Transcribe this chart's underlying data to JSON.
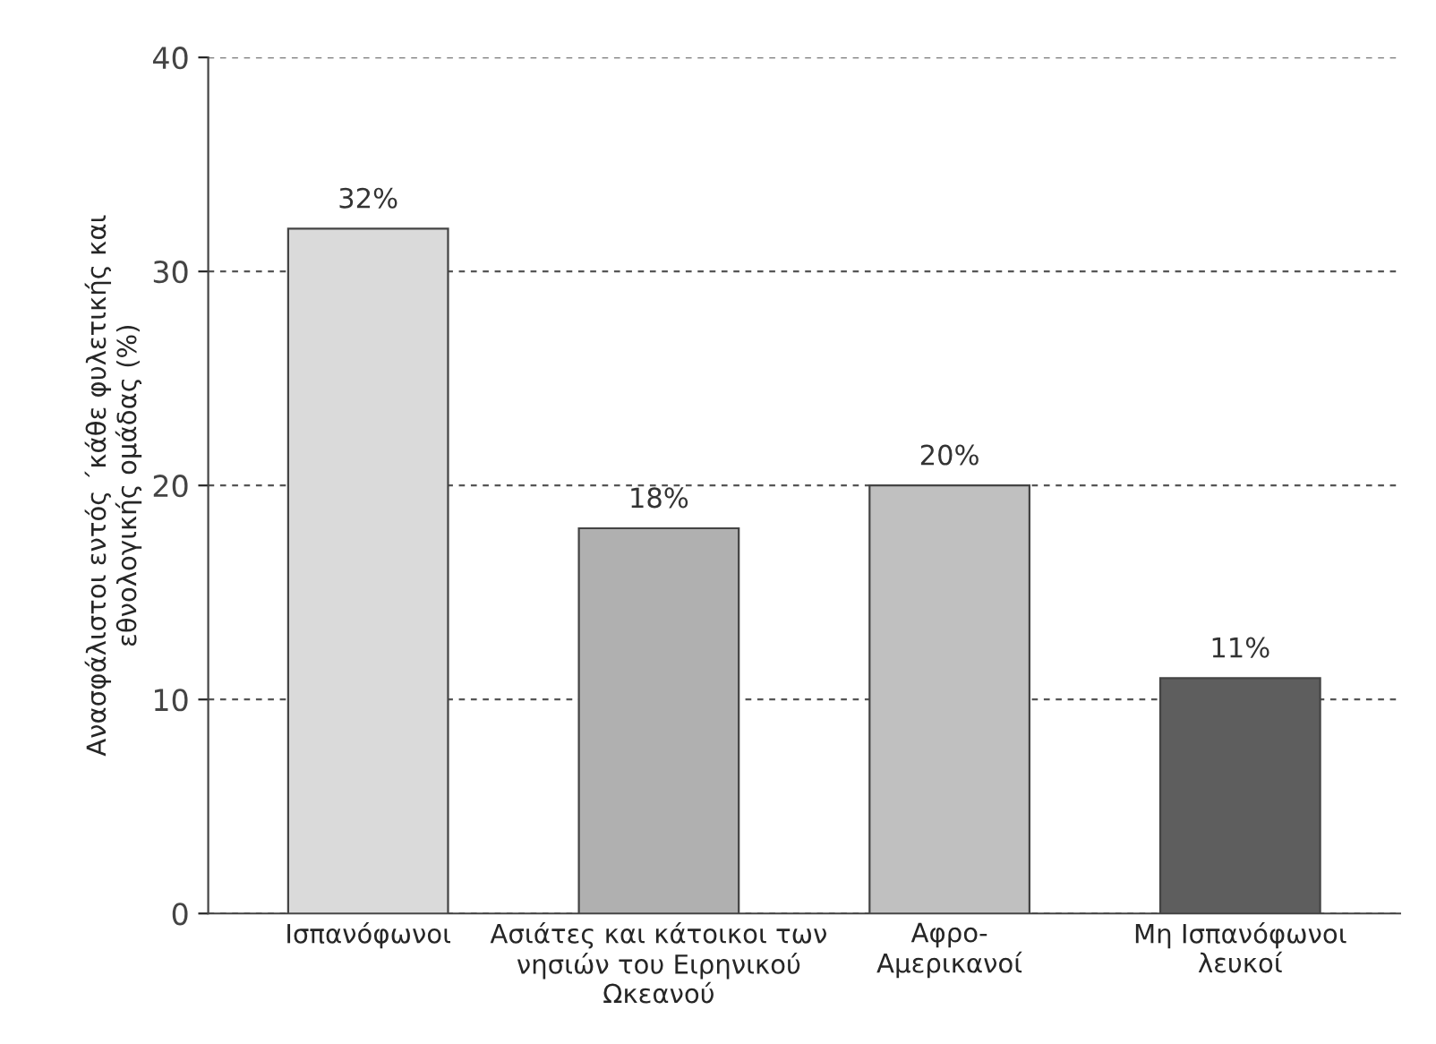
{
  "chart_data": {
    "type": "bar",
    "ylabel": "Ανασφάλιστοι εντός ΄κάθε φυλετικής και\nεθνολογικής ομάδας (%)",
    "categories": [
      "Ισπανόφωνοι",
      "Ασιάτες και κάτοικοι των\nνησιών του Ειρηνικού\nΩκεανού",
      "Αφρο-\nΑμερικανοί",
      "Μη Ισπανόφωνοι\nλευκοί"
    ],
    "values": [
      32,
      18,
      20,
      11
    ],
    "colors": [
      "#dadada",
      "#b0b0b0",
      "#c0c0c0",
      "#5e5e5e"
    ],
    "value_labels": [
      "32%",
      "18%",
      "20%",
      "11%"
    ],
    "ylim": [
      0,
      40
    ],
    "yticks": [
      0,
      10,
      20,
      30,
      40
    ],
    "grid": "y"
  }
}
